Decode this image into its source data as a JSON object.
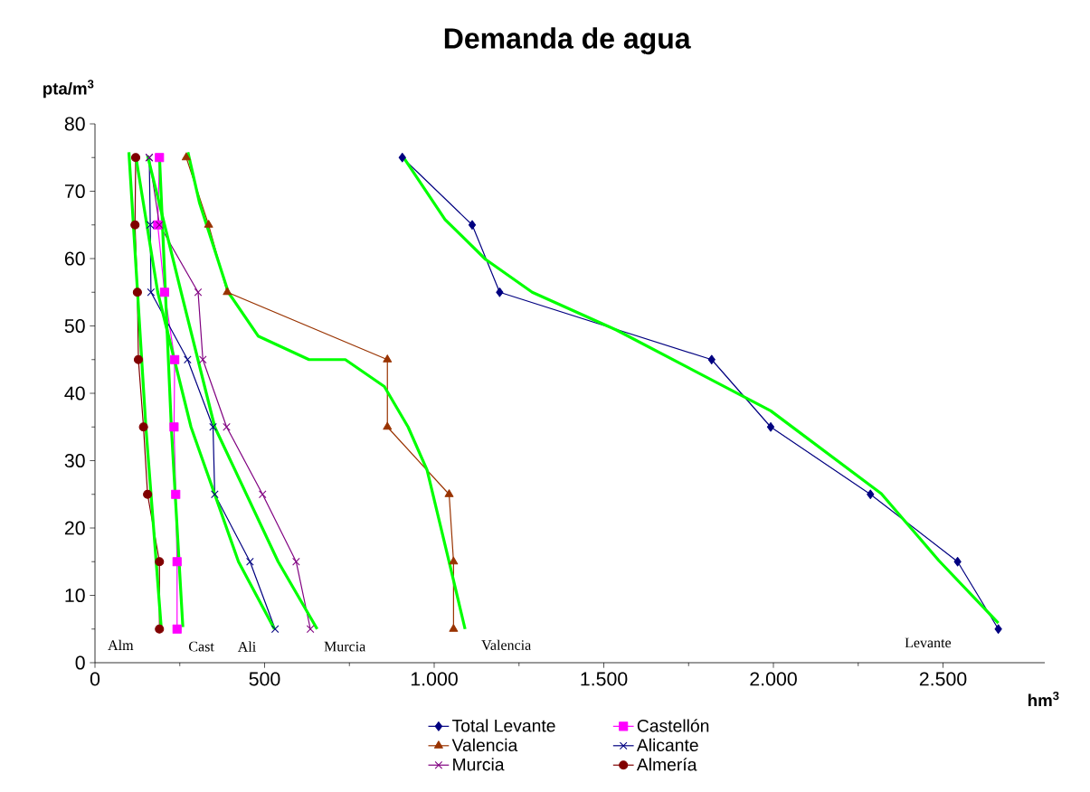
{
  "chart_data": {
    "type": "line",
    "title": "Demanda de agua",
    "xlabel": "hm$^{3}$",
    "ylabel": "pta/m$^{3}$",
    "xlim": [
      0,
      2800
    ],
    "xticks": [
      0,
      500,
      {
        "value": 1000,
        "label": "1.000"
      },
      {
        "value": 1500,
        "label": "1.500"
      },
      {
        "value": 2000,
        "label": "2.000"
      },
      {
        "value": 2500,
        "label": "2.500"
      }
    ],
    "ylim": [
      0,
      80
    ],
    "yticks": [
      0,
      10,
      20,
      30,
      40,
      50,
      60,
      70,
      80
    ],
    "grid": false,
    "legend": "bottom",
    "line_style": "solid",
    "series": [
      {
        "name": "Total Levante",
        "color": "#000080",
        "marker": "diamond",
        "x": [
          906,
          1112,
          1193,
          1818,
          1992,
          2286,
          2543,
          2663
        ],
        "values": [
          75,
          65,
          55,
          45,
          35,
          25,
          15,
          5
        ]
      },
      {
        "name": "Castellón",
        "color": "#ff00ff",
        "marker": "square",
        "x": [
          190,
          185,
          205,
          235,
          233,
          238,
          242,
          242
        ],
        "values": [
          75,
          65,
          55,
          45,
          35,
          25,
          15,
          5
        ]
      },
      {
        "name": "Valencia",
        "color": "#993300",
        "marker": "triangle",
        "x": [
          269,
          335,
          390,
          862,
          862,
          1044,
          1057,
          1057
        ],
        "values": [
          75,
          65,
          55,
          45,
          35,
          25,
          15,
          5
        ]
      },
      {
        "name": "Alicante",
        "color": "#000080",
        "marker": "cross",
        "x": [
          160,
          163,
          165,
          273,
          348,
          353,
          457,
          531
        ],
        "values": [
          75,
          65,
          55,
          45,
          35,
          25,
          15,
          5
        ]
      },
      {
        "name": "Murcia",
        "color": "#800080",
        "marker": "cross",
        "x": [
          160,
          190,
          304,
          318,
          388,
          494,
          593,
          635
        ],
        "values": [
          75,
          65,
          55,
          45,
          35,
          25,
          15,
          5
        ]
      },
      {
        "name": "Almería",
        "color": "#800000",
        "marker": "circle",
        "x": [
          120,
          118,
          125,
          128,
          143,
          155,
          190,
          190
        ],
        "values": [
          75,
          65,
          55,
          45,
          35,
          25,
          15,
          5
        ]
      },
      {
        "color": "#00ff00",
        "marker": "none",
        "x": [
          100,
          150,
          195
        ],
        "values": [
          75.8,
          35,
          5.4
        ]
      },
      {
        "color": "#00ff00",
        "marker": "none",
        "x": [
          190,
          225,
          259
        ],
        "values": [
          75.3,
          35,
          5.3
        ]
      },
      {
        "color": "#00ff00",
        "marker": "none",
        "x": [
          120,
          185,
          283,
          423,
          529
        ],
        "values": [
          75.3,
          55,
          35,
          15,
          5
        ]
      },
      {
        "color": "#00ff00",
        "marker": "none",
        "x": [
          155,
          254,
          353,
          540,
          655
        ],
        "values": [
          75.3,
          55,
          35,
          15,
          5
        ]
      },
      {
        "color": "#00ff00",
        "marker": "none",
        "x": [
          274,
          308,
          393,
          481,
          631,
          738,
          853,
          923,
          979,
          1043,
          1091
        ],
        "values": [
          75.8,
          68.3,
          55,
          48.5,
          45,
          45,
          41,
          35,
          28.6,
          15.2,
          5
        ]
      },
      {
        "color": "#00ff00",
        "marker": "none",
        "x": [
          906,
          1032,
          1151,
          1289,
          1537,
          1992,
          2318,
          2487,
          2663
        ],
        "values": [
          75.3,
          65.8,
          59.9,
          55,
          49.4,
          37.4,
          25.1,
          15.2,
          5.9
        ]
      }
    ],
    "annotations": [
      "Alm",
      "Cast",
      "Ali",
      "Murcia",
      "Valencia",
      "Levante"
    ]
  }
}
